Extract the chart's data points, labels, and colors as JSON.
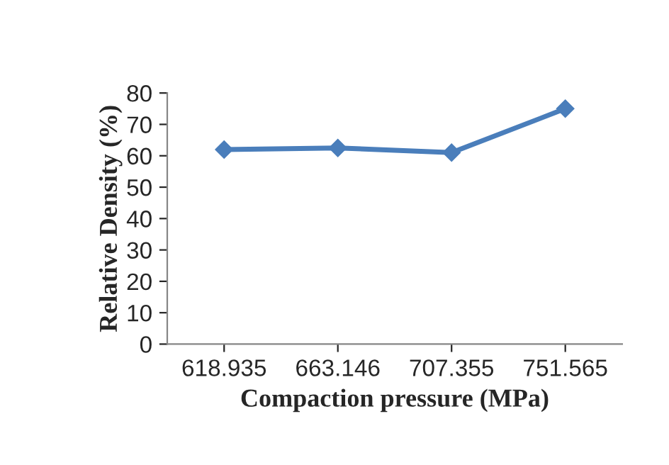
{
  "chart_data": {
    "type": "line",
    "xlabel": "Compaction pressure (MPa)",
    "ylabel": "Relative Density (%)",
    "categories": [
      "618.935",
      "663.146",
      "707.355",
      "751.565"
    ],
    "series": [
      {
        "color": "#4a7ebb",
        "values": [
          62,
          62.5,
          61,
          75
        ]
      }
    ],
    "ylim": [
      0,
      80
    ],
    "yticks": [
      0,
      10,
      20,
      30,
      40,
      50,
      60,
      70,
      80
    ],
    "marker": "diamond",
    "line_style": "solid"
  }
}
